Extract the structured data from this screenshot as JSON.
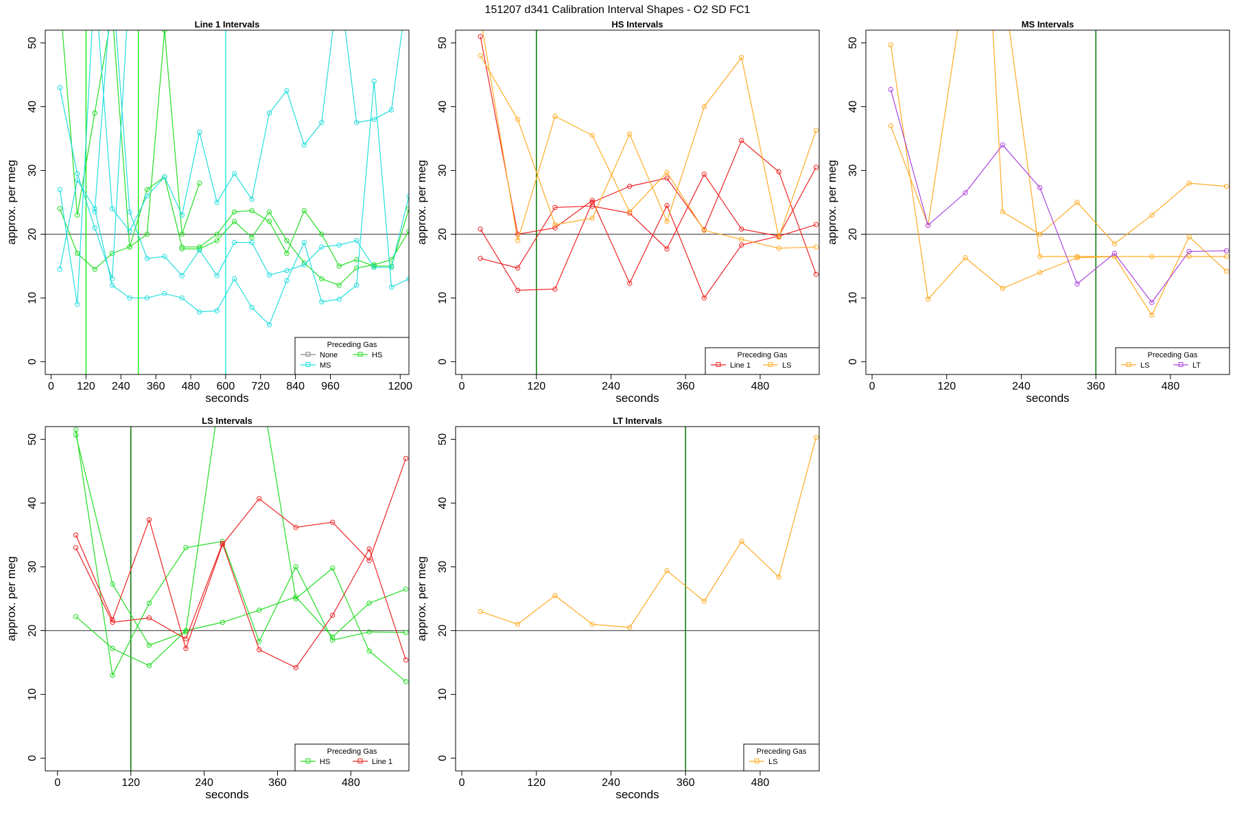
{
  "figure": {
    "title": "151207   d341   Calibration Interval Shapes - O2 SD FC1",
    "legend_title": "Preceding Gas",
    "colors": {
      "None": "#888888",
      "HS": "#22dd22",
      "MS": "#22dddd",
      "Line 1": "#ee2222",
      "LS": "#ffaa22",
      "LT": "#aa44dd",
      "refline": "#555555",
      "vline_green": "#007700",
      "vline_bright_green": "#22ee22",
      "vline_cyan": "#22eeee"
    }
  },
  "chart_data": [
    {
      "id": "line1",
      "type": "line",
      "title": "Line 1 Intervals",
      "xlabel": "seconds",
      "ylabel": "approx. per meg",
      "xlim": [
        -20,
        1230
      ],
      "ylim": [
        -2,
        52
      ],
      "xticks": [
        0,
        120,
        240,
        360,
        480,
        600,
        720,
        840,
        960,
        1200
      ],
      "yticks": [
        0,
        10,
        20,
        30,
        40,
        50
      ],
      "hline": 20,
      "vlines": [
        {
          "x": 120,
          "color": "vline_bright_green"
        },
        {
          "x": 300,
          "color": "vline_bright_green"
        },
        {
          "x": 600,
          "color": "vline_cyan"
        }
      ],
      "legend": [
        "None",
        "HS",
        "MS"
      ],
      "legend_cols": 2,
      "series": [
        {
          "name": "HS",
          "x": [
            30,
            90,
            150,
            210,
            270,
            330,
            390,
            450,
            510
          ],
          "y": [
            57,
            23,
            39,
            55,
            18,
            20,
            52,
            20,
            28
          ]
        },
        {
          "name": "HS",
          "x": [
            30,
            90,
            150,
            210,
            270,
            330,
            390,
            450,
            510,
            570,
            630,
            690,
            750,
            810,
            870,
            930,
            990,
            1050,
            1110,
            1170,
            1230
          ],
          "y": [
            24,
            17,
            14.5,
            17,
            18,
            27,
            29,
            18,
            18,
            20,
            23.5,
            23.7,
            22,
            17,
            23.7,
            20,
            15,
            16,
            15,
            15,
            24
          ]
        },
        {
          "name": "HS",
          "x": [
            450,
            510,
            570,
            630,
            690,
            750,
            810,
            870,
            930,
            990,
            1050,
            1110,
            1170,
            1230
          ],
          "y": [
            17.7,
            17.7,
            19,
            22,
            19.5,
            23.5,
            19,
            15.5,
            13,
            12,
            14.7,
            15.2,
            16,
            20.5
          ]
        },
        {
          "name": "MS",
          "x": [
            30,
            90,
            150,
            210,
            270
          ],
          "y": [
            43,
            29.5,
            21,
            13,
            60
          ]
        },
        {
          "name": "MS",
          "x": [
            30,
            90,
            150,
            210,
            270,
            330,
            390,
            450,
            510,
            570,
            630,
            690,
            750,
            810,
            870,
            930,
            990,
            1050,
            1110,
            1170,
            1230
          ],
          "y": [
            27,
            9,
            60,
            24,
            20.5,
            26,
            29,
            23,
            36,
            25,
            29.5,
            25.5,
            39,
            42.5,
            34,
            37.5,
            60,
            37.5,
            38,
            39.5,
            60
          ]
        },
        {
          "name": "MS",
          "x": [
            30,
            90,
            150,
            210,
            270,
            330,
            390,
            450,
            510,
            570,
            630,
            690,
            750,
            810,
            870,
            930,
            990,
            1050,
            1110,
            1170,
            1230
          ],
          "y": [
            14.5,
            28.5,
            24,
            12,
            10,
            10,
            10.7,
            10,
            7.8,
            8,
            13,
            8.5,
            5.8,
            12.7,
            18.7,
            9.4,
            9.8,
            12,
            44,
            11.7,
            13
          ]
        },
        {
          "name": "MS",
          "x": [
            150,
            210,
            270,
            330,
            390,
            450,
            510,
            570,
            630,
            690,
            750,
            810,
            870,
            930,
            990,
            1050,
            1110,
            1170,
            1230
          ],
          "y": [
            23.5,
            60,
            23.5,
            16.2,
            16.5,
            13.5,
            17.5,
            13.5,
            18.7,
            18.7,
            13.6,
            14.3,
            15.2,
            18,
            18.3,
            19,
            14.8,
            14.8,
            26
          ]
        }
      ]
    },
    {
      "id": "hs",
      "type": "line",
      "title": "HS Intervals",
      "xlabel": "seconds",
      "ylabel": "approx. per meg",
      "xlim": [
        -10,
        575
      ],
      "ylim": [
        -2,
        52
      ],
      "xticks": [
        0,
        120,
        240,
        360,
        480
      ],
      "yticks": [
        0,
        10,
        20,
        30,
        40,
        50
      ],
      "hline": 20,
      "vlines": [
        {
          "x": 120,
          "color": "vline_green"
        }
      ],
      "legend": [
        "Line 1",
        "LS"
      ],
      "legend_cols": 2,
      "series": [
        {
          "name": "Line 1",
          "x": [
            30,
            90,
            150,
            210,
            270,
            330,
            390,
            450,
            510,
            570
          ],
          "y": [
            51,
            20,
            21,
            25.3,
            12.3,
            24.5,
            10,
            18.3,
            19.7,
            30.5
          ]
        },
        {
          "name": "Line 1",
          "x": [
            30,
            90,
            150,
            210,
            270,
            330,
            390,
            450,
            510,
            570
          ],
          "y": [
            20.8,
            11.2,
            11.4,
            25,
            27.5,
            28.8,
            20.7,
            34.7,
            29.8,
            13.7
          ]
        },
        {
          "name": "Line 1",
          "x": [
            30,
            90,
            150,
            210,
            270,
            330,
            390,
            450,
            510,
            570
          ],
          "y": [
            16.2,
            14.7,
            24.2,
            24.4,
            23.3,
            17.7,
            29.4,
            20.8,
            19.7,
            21.5
          ]
        },
        {
          "name": "LS",
          "x": [
            30,
            90,
            150,
            210,
            270,
            330,
            390,
            450,
            510,
            570
          ],
          "y": [
            54,
            19,
            38.5,
            35.5,
            23.5,
            29.7,
            20.6,
            19.2,
            17.8,
            18
          ]
        },
        {
          "name": "LS",
          "x": [
            30,
            90,
            150,
            210,
            270,
            330,
            390,
            450,
            510,
            570
          ],
          "y": [
            48,
            38,
            21.5,
            22.5,
            35.7,
            22,
            40,
            47.7,
            19.5,
            36.3
          ]
        }
      ]
    },
    {
      "id": "ms",
      "type": "line",
      "title": "MS Intervals",
      "xlabel": "seconds",
      "ylabel": "approx. per meg",
      "xlim": [
        -10,
        575
      ],
      "ylim": [
        -2,
        52
      ],
      "xticks": [
        0,
        120,
        240,
        360,
        480
      ],
      "yticks": [
        0,
        10,
        20,
        30,
        40,
        50
      ],
      "hline": 20,
      "vlines": [
        {
          "x": 360,
          "color": "vline_green"
        }
      ],
      "legend": [
        "LS",
        "LT"
      ],
      "legend_cols": 2,
      "series": [
        {
          "name": "LS",
          "x": [
            30,
            90,
            150,
            210,
            270,
            330,
            390,
            450,
            510,
            570
          ],
          "y": [
            49.7,
            9.8,
            16.3,
            11.5,
            14,
            16.3,
            16.5,
            7.3,
            19.6,
            14.2
          ]
        },
        {
          "name": "LS",
          "x": [
            30,
            90,
            150,
            210,
            270,
            330,
            390,
            450,
            510,
            570
          ],
          "y": [
            37,
            21.4,
            60,
            60,
            16.5,
            16.5,
            16.5,
            16.5,
            16.5,
            16.5
          ]
        },
        {
          "name": "LS",
          "x": [
            190,
            210,
            270,
            330,
            390,
            450,
            510,
            570
          ],
          "y": [
            60,
            23.5,
            20,
            25,
            18.5,
            23,
            28,
            27.5
          ]
        },
        {
          "name": "LT",
          "x": [
            30,
            90,
            150,
            210,
            270,
            330,
            390,
            450,
            510,
            570
          ],
          "y": [
            42.7,
            21.4,
            26.5,
            34,
            27.3,
            12.2,
            17,
            9.3,
            17.3,
            17.4
          ]
        }
      ]
    },
    {
      "id": "ls",
      "type": "line",
      "title": "LS Intervals",
      "xlabel": "seconds",
      "ylabel": "approx. per meg",
      "xlim": [
        -20,
        575
      ],
      "ylim": [
        -2,
        52
      ],
      "xticks": [
        0,
        120,
        240,
        360,
        480
      ],
      "yticks": [
        0,
        10,
        20,
        30,
        40,
        50
      ],
      "hline": 20,
      "vlines": [
        {
          "x": 120,
          "color": "vline_green"
        }
      ],
      "legend": [
        "HS",
        "Line 1"
      ],
      "legend_cols": 2,
      "series": [
        {
          "name": "HS",
          "x": [
            30,
            90,
            150,
            210,
            270,
            330,
            390,
            450,
            510,
            570
          ],
          "y": [
            51.5,
            13,
            24.3,
            33,
            34,
            18.3,
            30,
            18.5,
            19.8,
            19.7
          ]
        },
        {
          "name": "HS",
          "x": [
            30,
            90,
            150,
            210,
            270,
            330,
            390,
            450,
            510,
            570
          ],
          "y": [
            50.7,
            27.3,
            17.7,
            19.8,
            60,
            60,
            25,
            29.8,
            16.8,
            12
          ]
        },
        {
          "name": "HS",
          "x": [
            30,
            90,
            150,
            210,
            270,
            330,
            390,
            450,
            510,
            570
          ],
          "y": [
            22.2,
            17.2,
            14.5,
            20,
            21.3,
            23.2,
            25.3,
            19,
            24.3,
            26.5
          ]
        },
        {
          "name": "Line 1",
          "x": [
            30,
            90,
            150,
            210,
            270,
            330,
            390,
            450,
            510,
            570
          ],
          "y": [
            35,
            21.7,
            37.4,
            17.2,
            33.5,
            40.7,
            36.2,
            37,
            31,
            47
          ]
        },
        {
          "name": "Line 1",
          "x": [
            30,
            90,
            150,
            210,
            270,
            330,
            390,
            450,
            510,
            570
          ],
          "y": [
            33,
            21.3,
            22,
            18.7,
            33.7,
            17,
            14.2,
            22.4,
            32.8,
            15.4
          ]
        }
      ]
    },
    {
      "id": "lt",
      "type": "line",
      "title": "LT Intervals",
      "xlabel": "seconds",
      "ylabel": "approx. per meg",
      "xlim": [
        -10,
        575
      ],
      "ylim": [
        -2,
        52
      ],
      "xticks": [
        0,
        120,
        240,
        360,
        480
      ],
      "yticks": [
        0,
        10,
        20,
        30,
        40,
        50
      ],
      "hline": 20,
      "vlines": [
        {
          "x": 360,
          "color": "vline_green"
        }
      ],
      "legend": [
        "LS"
      ],
      "legend_cols": 1,
      "series": [
        {
          "name": "LS",
          "x": [
            30,
            90,
            150,
            210,
            270,
            330,
            390,
            450,
            510,
            570
          ],
          "y": [
            23,
            21,
            25.5,
            21,
            20.5,
            29.4,
            24.6,
            34,
            28.4,
            50.3
          ]
        }
      ]
    }
  ]
}
